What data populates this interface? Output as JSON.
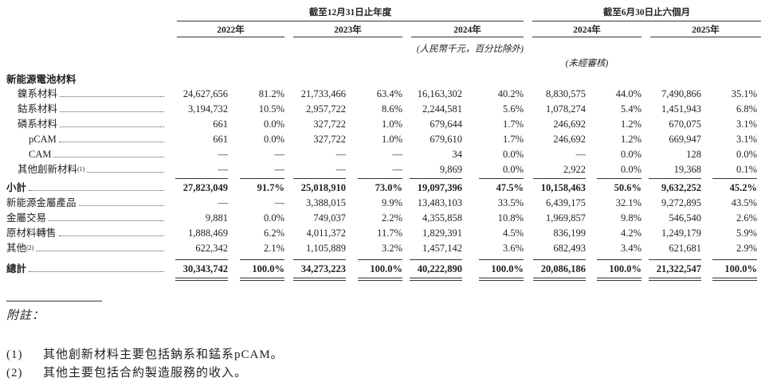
{
  "table": {
    "header": {
      "period_groups": [
        "截至12月31日止年度",
        "截至6月30日止六個月"
      ],
      "years": [
        "2022年",
        "2023年",
        "2024年",
        "2024年",
        "2025年"
      ],
      "unit_note": "(人民幣千元，百分比除外)",
      "audit_note": "(未經審核)"
    },
    "section": {
      "title": "新能源電池材料",
      "rows": [
        {
          "label": "鎳系材料",
          "cells": [
            "24,627,656",
            "81.2%",
            "21,733,466",
            "63.4%",
            "16,163,302",
            "40.2%",
            "8,830,575",
            "44.0%",
            "7,490,866",
            "35.1%"
          ]
        },
        {
          "label": "鈷系材料",
          "cells": [
            "3,194,732",
            "10.5%",
            "2,957,722",
            "8.6%",
            "2,244,581",
            "5.6%",
            "1,078,274",
            "5.4%",
            "1,451,943",
            "6.8%"
          ]
        },
        {
          "label": "磷系材料",
          "cells": [
            "661",
            "0.0%",
            "327,722",
            "1.0%",
            "679,644",
            "1.7%",
            "246,692",
            "1.2%",
            "670,075",
            "3.1%"
          ],
          "children": [
            {
              "label": "pCAM",
              "cells": [
                "661",
                "0.0%",
                "327,722",
                "1.0%",
                "679,610",
                "1.7%",
                "246,692",
                "1.2%",
                "669,947",
                "3.1%"
              ]
            },
            {
              "label": "CAM",
              "cells": [
                "—",
                "—",
                "—",
                "—",
                "34",
                "0.0%",
                "—",
                "0.0%",
                "128",
                "0.0%"
              ]
            }
          ]
        },
        {
          "label": "其他創新材料",
          "note_ref": "(1)",
          "cells": [
            "—",
            "—",
            "—",
            "—",
            "9,869",
            "0.0%",
            "2,922",
            "0.0%",
            "19,368",
            "0.1%"
          ]
        }
      ]
    },
    "subtotal": {
      "label": "小計",
      "cells": [
        "27,823,049",
        "91.7%",
        "25,018,910",
        "73.0%",
        "19,097,396",
        "47.5%",
        "10,158,463",
        "50.6%",
        "9,632,252",
        "45.2%"
      ]
    },
    "rows": [
      {
        "label": "新能源金屬產品",
        "cells": [
          "—",
          "—",
          "3,388,015",
          "9.9%",
          "13,483,103",
          "33.5%",
          "6,439,175",
          "32.1%",
          "9,272,895",
          "43.5%"
        ]
      },
      {
        "label": "金屬交易",
        "cells": [
          "9,881",
          "0.0%",
          "749,037",
          "2.2%",
          "4,355,858",
          "10.8%",
          "1,969,857",
          "9.8%",
          "546,540",
          "2.6%"
        ]
      },
      {
        "label": "原材料轉售",
        "cells": [
          "1,888,469",
          "6.2%",
          "4,011,372",
          "11.7%",
          "1,829,391",
          "4.5%",
          "836,199",
          "4.2%",
          "1,249,179",
          "5.9%"
        ]
      },
      {
        "label": "其他",
        "note_ref": "(2)",
        "cells": [
          "622,342",
          "2.1%",
          "1,105,889",
          "3.2%",
          "1,457,142",
          "3.6%",
          "682,493",
          "3.4%",
          "621,681",
          "2.9%"
        ]
      }
    ],
    "total": {
      "label": "總計",
      "cells": [
        "30,343,742",
        "100.0%",
        "34,273,223",
        "100.0%",
        "40,222,890",
        "100.0%",
        "20,086,186",
        "100.0%",
        "21,322,547",
        "100.0%"
      ]
    }
  },
  "notes": {
    "title": "附註：",
    "items": [
      {
        "marker": "(1)",
        "text": "其他創新材料主要包括鈉系和錳系pCAM。"
      },
      {
        "marker": "(2)",
        "text": "其他主要包括合約製造服務的收入。"
      }
    ]
  }
}
